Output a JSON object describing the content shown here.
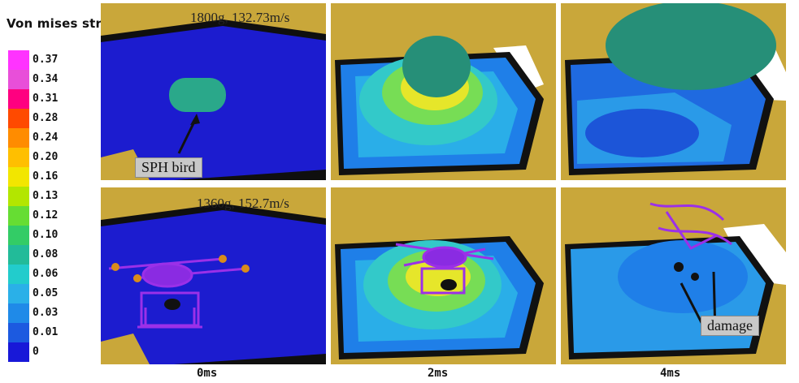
{
  "legend": {
    "title": "Von mises stress",
    "values": [
      "0.37",
      "0.34",
      "0.31",
      "0.28",
      "0.24",
      "0.20",
      "0.16",
      "0.13",
      "0.12",
      "0.10",
      "0.08",
      "0.06",
      "0.05",
      "0.03",
      "0.01",
      "0"
    ],
    "colors": [
      "#ff33ff",
      "#e84fd9",
      "#ff0080",
      "#ff4a00",
      "#ff8c00",
      "#ffbf00",
      "#f2e600",
      "#b3e600",
      "#66dd33",
      "#33cc66",
      "#22bb99",
      "#22cccc",
      "#2ab0e8",
      "#1f8ae8",
      "#1c5ae0",
      "#1818d8"
    ]
  },
  "panels": {
    "top_left_tag": "1800g, 132.73m/s",
    "bottom_left_tag": "1360g, 152.7m/s",
    "sph_callout": "SPH bird",
    "damage_callout": "damage"
  },
  "time_labels": [
    "0ms",
    "2ms",
    "4ms"
  ]
}
